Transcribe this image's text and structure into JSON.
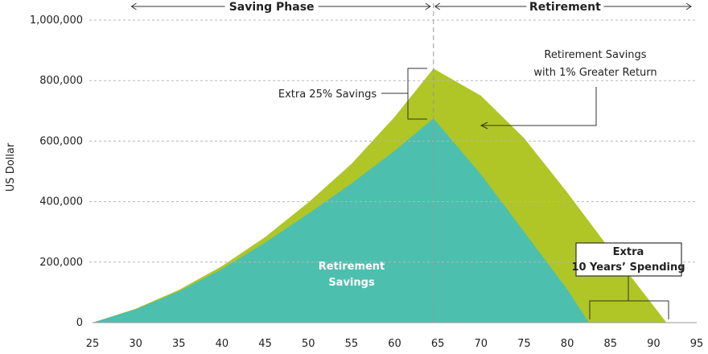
{
  "chart_data": {
    "type": "area",
    "xlabel": "",
    "ylabel": "US Dollar",
    "xlim": [
      25,
      95
    ],
    "ylim": [
      0,
      1000000
    ],
    "x_ticks": [
      "25",
      "30",
      "35",
      "40",
      "45",
      "50",
      "55",
      "60",
      "65",
      "70",
      "75",
      "80",
      "85",
      "90",
      "95"
    ],
    "y_ticks": [
      "0",
      "200,000",
      "400,000",
      "600,000",
      "800,000",
      "1,000,000"
    ],
    "colors": {
      "base": "#4dbfae",
      "extra": "#afc626",
      "line": "#aaaaaa"
    },
    "phases": [
      {
        "label": "Saving Phase",
        "start": 27,
        "end": 64.5
      },
      {
        "label": "Retirement",
        "start": 64.5,
        "end": 95
      }
    ],
    "divider_x": 64.5,
    "series": [
      {
        "name": "Retirement Savings",
        "x": [
          25,
          30,
          35,
          40,
          45,
          50,
          55,
          60,
          64.5,
          70,
          75,
          80,
          82.5
        ],
        "values": [
          0,
          44000,
          103000,
          177000,
          265000,
          360000,
          460000,
          568000,
          675000,
          490000,
          300000,
          110000,
          0
        ]
      },
      {
        "name": "Retirement Savings with 1% Greater Return",
        "x": [
          25,
          30,
          35,
          40,
          45,
          50,
          55,
          60,
          64.5,
          70,
          75,
          80,
          85,
          91.5
        ],
        "values": [
          0,
          46000,
          108000,
          187000,
          283000,
          397000,
          525000,
          680000,
          840000,
          750000,
          610000,
          430000,
          240000,
          0
        ]
      }
    ],
    "annotations": {
      "inside_label": [
        "Retirement",
        "Savings"
      ],
      "greater_return": [
        "Retirement Savings",
        "with 1% Greater Return"
      ],
      "extra_savings": "Extra 25% Savings",
      "extra_spending": [
        "Extra",
        "10 Years’ Spending"
      ]
    }
  }
}
